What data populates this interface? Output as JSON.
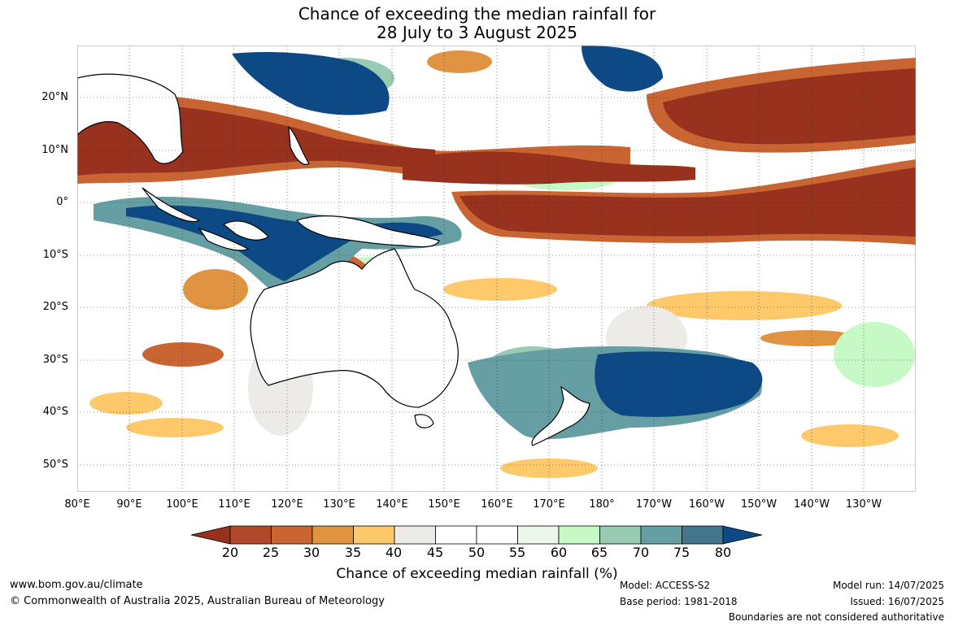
{
  "title": {
    "line1": "Chance of exceeding the median rainfall for",
    "line2": "28 July to 3 August 2025"
  },
  "map": {
    "lon_labels": [
      "80°E",
      "90°E",
      "100°E",
      "110°E",
      "120°E",
      "130°E",
      "140°E",
      "150°E",
      "160°E",
      "170°E",
      "180°",
      "170°W",
      "160°W",
      "150°W",
      "140°W",
      "130°W"
    ],
    "lat_labels": [
      "20°N",
      "10°N",
      "0°",
      "10°S",
      "20°S",
      "30°S",
      "40°S",
      "50°S"
    ],
    "ocean_color": "#ffffff",
    "coast_color": "#000000",
    "regions": [
      {
        "name": "northern-indian-ocean-dry",
        "color": "#98311d"
      },
      {
        "name": "equatorial-pacific-dry",
        "color": "#98311d"
      },
      {
        "name": "northeast-pacific-dry",
        "color": "#98311d"
      },
      {
        "name": "indonesia-wet",
        "color": "#0d4a85"
      },
      {
        "name": "philippines-wet",
        "color": "#0d4a85"
      },
      {
        "name": "tasman-wet",
        "color": "#0d4a85"
      }
    ]
  },
  "colorbar": {
    "ticks": [
      "20",
      "25",
      "30",
      "35",
      "40",
      "45",
      "50",
      "55",
      "60",
      "65",
      "70",
      "75",
      "80"
    ],
    "colors": [
      "#98311d",
      "#b0492a",
      "#c96532",
      "#e09442",
      "#fdc96b",
      "#ecebe7",
      "#ffffff",
      "#ffffff",
      "#eaf7e9",
      "#c6f9c6",
      "#99cbb4",
      "#669fa3",
      "#41768d",
      "#0d4a85"
    ],
    "title": "Chance of exceeding median rainfall (%)"
  },
  "footer": {
    "website": "www.bom.gov.au/climate",
    "copyright": "© Commonwealth of Australia 2025, Australian Bureau of Meteorology",
    "model": "Model: ACCESS-S2",
    "base_period": "Base period: 1981-2018",
    "model_run": "Model run: 14/07/2025",
    "issued": "Issued: 16/07/2025",
    "disclaimer": "Boundaries are not considered authoritative"
  }
}
